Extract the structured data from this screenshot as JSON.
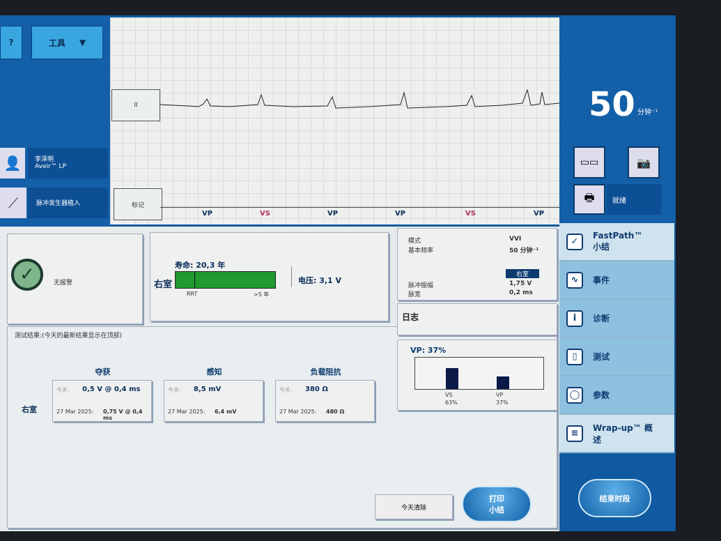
{
  "toolbar": {
    "help": "?",
    "tools": "工具"
  },
  "patient": {
    "name": "李泽明",
    "device": "Aveir™ LP"
  },
  "procedure": "脉冲发生器植入",
  "ecg": {
    "lead": "II",
    "mark_button": "标记",
    "markers": [
      "VP",
      "VS",
      "VP",
      "VP",
      "VS",
      "VP"
    ]
  },
  "rate": {
    "value": "50",
    "unit": "分钟⁻¹"
  },
  "status": {
    "ready": "就绪"
  },
  "nav": [
    {
      "label": "FastPath™ 小结",
      "icon": "check-icon"
    },
    {
      "label": "事件",
      "icon": "waveform-icon"
    },
    {
      "label": "诊断",
      "icon": "info-icon"
    },
    {
      "label": "测试",
      "icon": "clipboard-icon"
    },
    {
      "label": "参数",
      "icon": "device-icon"
    },
    {
      "label": "Wrap-up™ 概述",
      "icon": "list-icon"
    }
  ],
  "alerts": {
    "text": "无报警"
  },
  "battery": {
    "chamber": "右室",
    "longevity": "寿命: 20,3 年",
    "rrt": "RRT",
    "max": ">5 年",
    "voltage": "电压: 3,1 V"
  },
  "params": {
    "mode_label": "模式",
    "mode": "VVI",
    "rate_label": "基本频率",
    "rate": "50 分钟⁻¹",
    "chamber": "右室",
    "amp_label": "脉冲振幅",
    "amp": "1,75 V",
    "pw_label": "脉宽",
    "pw": "0,2 ms"
  },
  "log": {
    "title": "日志"
  },
  "pacing": {
    "title": "VP: 37%",
    "bars": [
      {
        "label": "VS",
        "pct": "63%",
        "value": 63
      },
      {
        "label": "VP",
        "pct": "37%",
        "value": 37
      }
    ]
  },
  "tests": {
    "title": "测试结果:(今天的最新结果显示在顶部)",
    "row": "右室",
    "today": "今天:",
    "cols": [
      {
        "head": "夺获",
        "today": "0,5 V @ 0,4 ms",
        "date": "27 Mar 2025:",
        "prev": "0,75 V @ 0,4 ms"
      },
      {
        "head": "感知",
        "today": "8,5 mV",
        "date": "27 Mar 2025:",
        "prev": "6,4 mV"
      },
      {
        "head": "负载阻抗",
        "today": "380 Ω",
        "date": "27 Mar 2025:",
        "prev": "480 Ω"
      }
    ]
  },
  "bottom": {
    "clear": "今天清除",
    "print": "打印 小结",
    "end": "结束时段"
  },
  "colors": {
    "accent": "#135fa8",
    "battery": "#1e9a2e",
    "bar": "#0c1a4a"
  }
}
